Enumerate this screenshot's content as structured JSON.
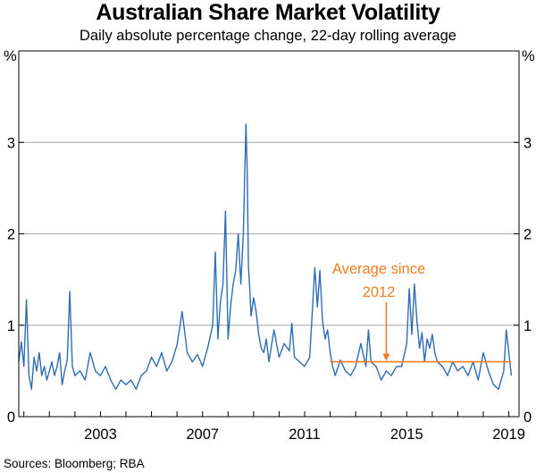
{
  "chart_data": {
    "type": "line",
    "title": "Australian Share Market Volatility",
    "subtitle": "Daily absolute percentage change, 22-day rolling average",
    "ylabel_left": "%",
    "ylabel_right": "%",
    "ylim": [
      0,
      4
    ],
    "xlim": [
      1999.8,
      2019.4
    ],
    "yticks": [
      0,
      1,
      2,
      3
    ],
    "ytick_labels": [
      "0",
      "1",
      "2",
      "3"
    ],
    "xticks": [
      2003,
      2007,
      2011,
      2015,
      2019
    ],
    "xtick_labels": [
      "2003",
      "2007",
      "2011",
      "2015",
      "2019"
    ],
    "grid": true,
    "series": [
      {
        "name": "Volatility",
        "color": "#2e6db4",
        "x": [
          1999.8,
          1999.9,
          2000.0,
          2000.1,
          2000.2,
          2000.3,
          2000.4,
          2000.5,
          2000.6,
          2000.7,
          2000.8,
          2000.9,
          2001.0,
          2001.1,
          2001.2,
          2001.3,
          2001.4,
          2001.5,
          2001.6,
          2001.7,
          2001.8,
          2001.9,
          2002.0,
          2002.2,
          2002.4,
          2002.6,
          2002.8,
          2003.0,
          2003.2,
          2003.4,
          2003.6,
          2003.8,
          2004.0,
          2004.2,
          2004.4,
          2004.6,
          2004.8,
          2005.0,
          2005.2,
          2005.4,
          2005.6,
          2005.8,
          2006.0,
          2006.2,
          2006.4,
          2006.6,
          2006.8,
          2007.0,
          2007.2,
          2007.4,
          2007.5,
          2007.6,
          2007.7,
          2007.8,
          2007.9,
          2008.0,
          2008.1,
          2008.2,
          2008.3,
          2008.4,
          2008.5,
          2008.6,
          2008.7,
          2008.75,
          2008.8,
          2008.85,
          2008.9,
          2009.0,
          2009.1,
          2009.2,
          2009.3,
          2009.4,
          2009.5,
          2009.6,
          2009.8,
          2010.0,
          2010.2,
          2010.4,
          2010.5,
          2010.6,
          2010.8,
          2011.0,
          2011.2,
          2011.4,
          2011.5,
          2011.6,
          2011.7,
          2011.8,
          2011.9,
          2012.0,
          2012.1,
          2012.2,
          2012.4,
          2012.6,
          2012.8,
          2013.0,
          2013.2,
          2013.4,
          2013.5,
          2013.6,
          2013.8,
          2014.0,
          2014.2,
          2014.4,
          2014.6,
          2014.8,
          2015.0,
          2015.1,
          2015.2,
          2015.3,
          2015.4,
          2015.5,
          2015.6,
          2015.7,
          2015.8,
          2015.9,
          2016.0,
          2016.1,
          2016.2,
          2016.4,
          2016.6,
          2016.8,
          2017.0,
          2017.2,
          2017.4,
          2017.6,
          2017.8,
          2018.0,
          2018.2,
          2018.4,
          2018.6,
          2018.8,
          2018.9,
          2019.0,
          2019.1
        ],
        "values": [
          0.6,
          0.82,
          0.55,
          1.28,
          0.45,
          0.3,
          0.65,
          0.5,
          0.7,
          0.45,
          0.55,
          0.4,
          0.5,
          0.6,
          0.45,
          0.55,
          0.7,
          0.35,
          0.5,
          0.62,
          1.37,
          0.55,
          0.45,
          0.5,
          0.4,
          0.7,
          0.5,
          0.45,
          0.55,
          0.4,
          0.3,
          0.4,
          0.35,
          0.4,
          0.3,
          0.45,
          0.5,
          0.65,
          0.55,
          0.7,
          0.5,
          0.6,
          0.78,
          1.15,
          0.7,
          0.6,
          0.68,
          0.55,
          0.75,
          1.0,
          1.8,
          0.85,
          1.25,
          1.45,
          2.25,
          0.85,
          1.2,
          1.45,
          1.6,
          2.0,
          1.45,
          2.0,
          3.2,
          2.7,
          1.65,
          1.4,
          1.1,
          1.3,
          1.15,
          0.9,
          0.75,
          0.7,
          0.85,
          0.6,
          0.95,
          0.65,
          0.8,
          0.72,
          1.02,
          0.65,
          0.6,
          0.55,
          0.65,
          1.63,
          1.2,
          1.6,
          1.05,
          0.85,
          0.95,
          0.7,
          0.55,
          0.45,
          0.62,
          0.5,
          0.45,
          0.55,
          0.8,
          0.55,
          0.95,
          0.6,
          0.55,
          0.4,
          0.5,
          0.45,
          0.55,
          0.55,
          0.8,
          1.4,
          0.9,
          1.45,
          1.05,
          0.75,
          0.92,
          0.6,
          0.85,
          0.75,
          0.9,
          0.7,
          0.6,
          0.55,
          0.45,
          0.6,
          0.5,
          0.55,
          0.45,
          0.6,
          0.4,
          0.7,
          0.5,
          0.35,
          0.3,
          0.5,
          0.95,
          0.7,
          0.45
        ]
      },
      {
        "name": "Average since 2012",
        "color": "#f47c20",
        "x": [
          2012.0,
          2019.1
        ],
        "values": [
          0.6,
          0.6
        ]
      }
    ],
    "annotations": [
      {
        "text_line1": "Average since",
        "text_line2": "2012",
        "arrow_x": 2014.2,
        "arrow_y": 0.6,
        "color": "#f47c20"
      }
    ],
    "source": "Sources: Bloomberg; RBA"
  }
}
